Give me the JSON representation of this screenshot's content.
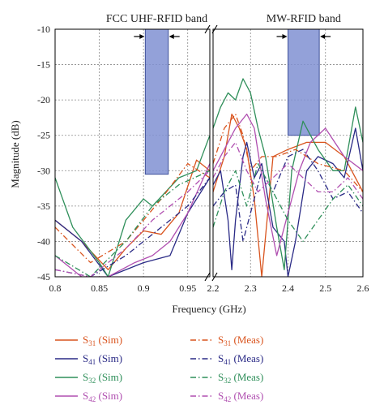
{
  "chart_data": {
    "type": "line",
    "xlabel": "Frequency (GHz)",
    "ylabel": "Magnitude (dB)",
    "ylim": [
      -45,
      -10
    ],
    "yticks": [
      "-10",
      "-15",
      "-20",
      "-25",
      "-30",
      "-35",
      "-40",
      "-45"
    ],
    "grid": true,
    "legend_position": "bottom",
    "panels": [
      {
        "xlim": [
          0.8,
          0.975
        ],
        "xticks": [
          "0.8",
          "0.85",
          "0.9",
          "0.95"
        ],
        "band": {
          "label": "FCC UHF-RFID band",
          "x": [
            0.902,
            0.928
          ],
          "y": [
            -30.5,
            -10
          ]
        }
      },
      {
        "xlim": [
          2.2,
          2.6
        ],
        "xticks": [
          "2.2",
          "2.3",
          "2.4",
          "2.5",
          "2.6"
        ],
        "band": {
          "label": "MW-RFID band",
          "x": [
            2.4,
            2.4835
          ],
          "y": [
            -25,
            -10
          ]
        }
      }
    ],
    "series": [
      {
        "label_main": "S",
        "label_sub": "31",
        "label_tail": " (Sim)",
        "color": "#d9541e",
        "dash": "solid",
        "segments": [
          [
            [
              0.8,
              -37
            ],
            [
              0.83,
              -40
            ],
            [
              0.86,
              -44
            ],
            [
              0.88,
              -41
            ],
            [
              0.9,
              -38.5
            ],
            [
              0.92,
              -39
            ],
            [
              0.94,
              -36
            ],
            [
              0.96,
              -28.5
            ],
            [
              0.975,
              -30
            ]
          ],
          [
            [
              2.2,
              -33
            ],
            [
              2.23,
              -28
            ],
            [
              2.25,
              -22
            ],
            [
              2.27,
              -24
            ],
            [
              2.29,
              -27
            ],
            [
              2.31,
              -34
            ],
            [
              2.33,
              -45
            ],
            [
              2.36,
              -28
            ],
            [
              2.4,
              -27
            ],
            [
              2.45,
              -26
            ],
            [
              2.5,
              -26
            ],
            [
              2.55,
              -28
            ],
            [
              2.6,
              -33
            ]
          ]
        ]
      },
      {
        "label_main": "S",
        "label_sub": "41",
        "label_tail": " (Sim)",
        "color": "#2a2a86",
        "dash": "solid",
        "segments": [
          [
            [
              0.8,
              -37
            ],
            [
              0.83,
              -40
            ],
            [
              0.86,
              -45
            ],
            [
              0.9,
              -43
            ],
            [
              0.93,
              -42
            ],
            [
              0.95,
              -36
            ],
            [
              0.975,
              -31
            ]
          ],
          [
            [
              2.2,
              -32
            ],
            [
              2.22,
              -30
            ],
            [
              2.24,
              -37
            ],
            [
              2.25,
              -44
            ],
            [
              2.26,
              -37
            ],
            [
              2.28,
              -28
            ],
            [
              2.29,
              -26
            ],
            [
              2.31,
              -31
            ],
            [
              2.33,
              -29
            ],
            [
              2.36,
              -38
            ],
            [
              2.39,
              -40
            ],
            [
              2.4,
              -45
            ],
            [
              2.42,
              -40
            ],
            [
              2.45,
              -30
            ],
            [
              2.48,
              -28
            ],
            [
              2.52,
              -29
            ],
            [
              2.55,
              -31
            ],
            [
              2.58,
              -24
            ],
            [
              2.6,
              -30
            ]
          ]
        ]
      },
      {
        "label_main": "S",
        "label_sub": "32",
        "label_tail": " (Sim)",
        "color": "#2f8f5a",
        "dash": "solid",
        "segments": [
          [
            [
              0.8,
              -31
            ],
            [
              0.82,
              -38
            ],
            [
              0.85,
              -43
            ],
            [
              0.86,
              -45
            ],
            [
              0.88,
              -37
            ],
            [
              0.9,
              -34
            ],
            [
              0.91,
              -35
            ],
            [
              0.94,
              -31
            ],
            [
              0.96,
              -30
            ],
            [
              0.975,
              -25
            ]
          ],
          [
            [
              2.2,
              -24
            ],
            [
              2.22,
              -21
            ],
            [
              2.24,
              -19
            ],
            [
              2.26,
              -20
            ],
            [
              2.28,
              -17
            ],
            [
              2.3,
              -19
            ],
            [
              2.32,
              -24
            ],
            [
              2.34,
              -28
            ],
            [
              2.37,
              -38
            ],
            [
              2.39,
              -44
            ],
            [
              2.41,
              -30
            ],
            [
              2.44,
              -23
            ],
            [
              2.48,
              -27
            ],
            [
              2.52,
              -30
            ],
            [
              2.55,
              -30
            ],
            [
              2.58,
              -21
            ],
            [
              2.6,
              -26
            ]
          ]
        ]
      },
      {
        "label_main": "S",
        "label_sub": "42",
        "label_tail": " (Sim)",
        "color": "#b04fb0",
        "dash": "solid",
        "segments": [
          [
            [
              0.8,
              -42
            ],
            [
              0.83,
              -45
            ],
            [
              0.86,
              -45
            ],
            [
              0.89,
              -43
            ],
            [
              0.91,
              -42
            ],
            [
              0.93,
              -40
            ],
            [
              0.95,
              -36
            ],
            [
              0.975,
              -29
            ]
          ],
          [
            [
              2.2,
              -30
            ],
            [
              2.23,
              -27
            ],
            [
              2.26,
              -24
            ],
            [
              2.29,
              -22
            ],
            [
              2.31,
              -24
            ],
            [
              2.34,
              -34
            ],
            [
              2.37,
              -42
            ],
            [
              2.4,
              -36
            ],
            [
              2.43,
              -30
            ],
            [
              2.46,
              -26
            ],
            [
              2.5,
              -24
            ],
            [
              2.55,
              -28
            ],
            [
              2.6,
              -30
            ]
          ]
        ]
      },
      {
        "label_main": "S",
        "label_sub": "31",
        "label_tail": " (Meas)",
        "color": "#d9541e",
        "dash": "dashdot",
        "segments": [
          [
            [
              0.8,
              -38
            ],
            [
              0.84,
              -43
            ],
            [
              0.88,
              -40
            ],
            [
              0.92,
              -34
            ],
            [
              0.95,
              -29
            ],
            [
              0.975,
              -31
            ]
          ],
          [
            [
              2.2,
              -29
            ],
            [
              2.23,
              -24
            ],
            [
              2.26,
              -22
            ],
            [
              2.28,
              -25
            ],
            [
              2.3,
              -30
            ],
            [
              2.33,
              -28
            ],
            [
              2.37,
              -28
            ],
            [
              2.42,
              -27
            ],
            [
              2.48,
              -29
            ],
            [
              2.55,
              -30
            ],
            [
              2.6,
              -33
            ]
          ]
        ]
      },
      {
        "label_main": "S",
        "label_sub": "41",
        "label_tail": " (Meas)",
        "color": "#2a2a86",
        "dash": "dashdot",
        "segments": [
          [
            [
              0.8,
              -44
            ],
            [
              0.84,
              -45
            ],
            [
              0.88,
              -42
            ],
            [
              0.92,
              -38
            ],
            [
              0.95,
              -35
            ],
            [
              0.975,
              -31
            ]
          ],
          [
            [
              2.2,
              -35
            ],
            [
              2.23,
              -33
            ],
            [
              2.26,
              -32
            ],
            [
              2.28,
              -40
            ],
            [
              2.3,
              -36
            ],
            [
              2.33,
              -30
            ],
            [
              2.36,
              -33
            ],
            [
              2.4,
              -28
            ],
            [
              2.44,
              -27
            ],
            [
              2.48,
              -30
            ],
            [
              2.52,
              -34
            ],
            [
              2.56,
              -33
            ],
            [
              2.6,
              -36
            ]
          ]
        ]
      },
      {
        "label_main": "S",
        "label_sub": "32",
        "label_tail": " (Meas)",
        "color": "#2f8f5a",
        "dash": "dashdot",
        "segments": [
          [
            [
              0.8,
              -42
            ],
            [
              0.84,
              -45
            ],
            [
              0.88,
              -40
            ],
            [
              0.91,
              -35
            ],
            [
              0.94,
              -32
            ],
            [
              0.975,
              -30
            ]
          ],
          [
            [
              2.2,
              -38
            ],
            [
              2.23,
              -33
            ],
            [
              2.26,
              -30
            ],
            [
              2.29,
              -35
            ],
            [
              2.32,
              -29
            ],
            [
              2.36,
              -33
            ],
            [
              2.4,
              -37
            ],
            [
              2.44,
              -40
            ],
            [
              2.48,
              -37
            ],
            [
              2.52,
              -34
            ],
            [
              2.56,
              -32
            ],
            [
              2.6,
              -35
            ]
          ]
        ]
      },
      {
        "label_main": "S",
        "label_sub": "42",
        "label_tail": " (Meas)",
        "color": "#b04fb0",
        "dash": "dashdot",
        "segments": [
          [
            [
              0.8,
              -44
            ],
            [
              0.84,
              -45
            ],
            [
              0.88,
              -41
            ],
            [
              0.91,
              -37
            ],
            [
              0.95,
              -33
            ],
            [
              0.975,
              -30
            ]
          ],
          [
            [
              2.2,
              -31
            ],
            [
              2.23,
              -28
            ],
            [
              2.26,
              -26
            ],
            [
              2.29,
              -30
            ],
            [
              2.32,
              -33
            ],
            [
              2.36,
              -31
            ],
            [
              2.4,
              -29
            ],
            [
              2.44,
              -31
            ],
            [
              2.48,
              -33
            ],
            [
              2.52,
              -33
            ],
            [
              2.56,
              -31
            ],
            [
              2.6,
              -34
            ]
          ]
        ]
      }
    ]
  }
}
